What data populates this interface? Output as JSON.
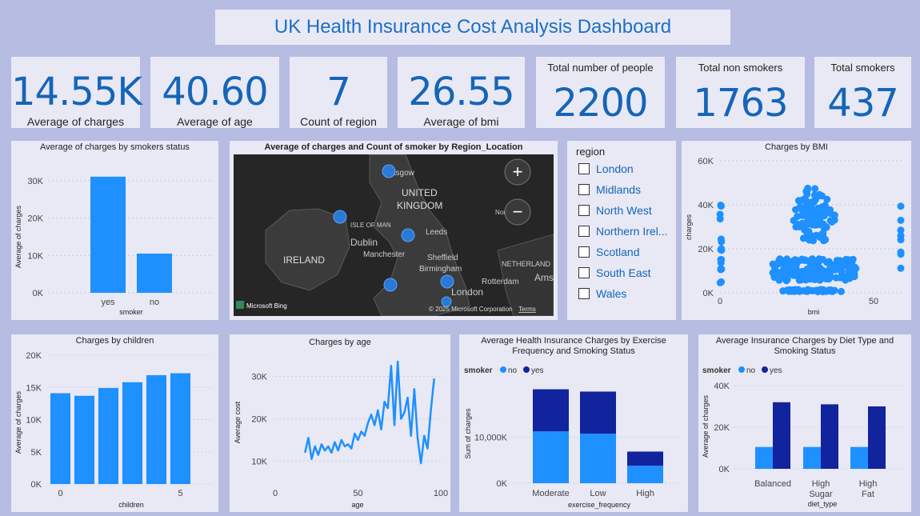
{
  "title": "UK Health Insurance Cost Analysis Dashboard",
  "kpis": [
    {
      "value": "14.55K",
      "label": "Average of charges"
    },
    {
      "value": "40.60",
      "label": "Average of age"
    },
    {
      "value": "7",
      "label": "Count of region"
    },
    {
      "value": "26.55",
      "label": "Average of bmi"
    },
    {
      "value": "2200",
      "label": "Total number of people"
    },
    {
      "value": "1763",
      "label": "Total non smokers"
    },
    {
      "value": "437",
      "label": "Total smokers"
    }
  ],
  "map": {
    "title": "Average of charges and Count of smoker by Region_Location",
    "labels": [
      "Glasgow",
      "UNITED",
      "KINGDOM",
      "ISLE OF MAN",
      "Dublin",
      "Leeds",
      "IRELAND",
      "Manchester",
      "Sheffield",
      "Birmingham",
      "NETHERLAND",
      "Rotterdam",
      "London",
      "Ams",
      "Nor"
    ],
    "attribution": "© 2025 Microsoft Corporation",
    "terms": "Terms",
    "bing": "Microsoft Bing",
    "zoom_in": "+",
    "zoom_out": "−"
  },
  "slicer": {
    "title": "region",
    "items": [
      "London",
      "Midlands",
      "North West",
      "Northern Irel...",
      "Scotland",
      "South East",
      "Wales"
    ]
  },
  "colors": {
    "light": "#1e90ff",
    "dark": "#12239e",
    "panel": "#e8e9f5",
    "bg": "#b7bce3"
  },
  "chart_data": [
    {
      "type": "bar",
      "title": "Average of charges by smokers status",
      "categories": [
        "yes",
        "no"
      ],
      "values": [
        31100,
        10500
      ],
      "xlabel": "smoker",
      "ylabel": "Average of charges",
      "ylim": [
        0,
        33000
      ],
      "yticks": [
        "30K",
        "20K",
        "10K",
        "0K"
      ]
    },
    {
      "type": "scatter",
      "title": "Charges by BMI",
      "xlabel": "bmi",
      "ylabel": "charges",
      "ylim": [
        0,
        60000
      ],
      "xlim": [
        0,
        70
      ],
      "yticks": [
        "60K",
        "40K",
        "20K",
        "0K"
      ],
      "xticks": [
        "0",
        "50"
      ]
    },
    {
      "type": "bar",
      "title": "Charges by children",
      "categories": [
        "0",
        "1",
        "2",
        "3",
        "4",
        "5"
      ],
      "values": [
        14100,
        13700,
        14900,
        15800,
        16900,
        17200
      ],
      "xlabel": "children",
      "ylabel": "Average of charges",
      "ylim": [
        0,
        20000
      ],
      "yticks": [
        "20K",
        "15K",
        "10K",
        "5K",
        "0K"
      ],
      "xticks": [
        "0",
        "5"
      ]
    },
    {
      "type": "line",
      "title": "Charges by age",
      "xlabel": "age",
      "ylabel": "Average cost",
      "xlim": [
        0,
        100
      ],
      "ylim": [
        5000,
        35000
      ],
      "yticks": [
        "30K",
        "20K",
        "10K"
      ],
      "xticks": [
        "0",
        "50",
        "100"
      ],
      "x": [
        18,
        20,
        22,
        24,
        26,
        28,
        30,
        32,
        34,
        36,
        38,
        40,
        42,
        44,
        46,
        48,
        50,
        52,
        54,
        56,
        58,
        60,
        62,
        64,
        66,
        68,
        70,
        72,
        74,
        76,
        78,
        80,
        82,
        84,
        86,
        88,
        90,
        92,
        94,
        96
      ],
      "y": [
        12000,
        15500,
        10500,
        13500,
        11500,
        14000,
        12500,
        13500,
        12000,
        14500,
        12500,
        15000,
        13500,
        14000,
        13000,
        16500,
        15000,
        17000,
        16000,
        19000,
        21000,
        18500,
        22000,
        17500,
        24000,
        22500,
        32500,
        18500,
        33500,
        20000,
        21500,
        25000,
        16000,
        27000,
        15500,
        9500,
        16000,
        13000,
        22000,
        29500
      ]
    },
    {
      "type": "bar",
      "title": "Average Health Insurance Charges by Exercise Frequency and Smoking Status",
      "legend_title": "smoker",
      "categories": [
        "Moderate",
        "Low",
        "High"
      ],
      "series": [
        {
          "name": "no",
          "values": [
            11300000,
            10800000,
            3800000
          ]
        },
        {
          "name": "yes",
          "values": [
            9200000,
            9200000,
            3100000
          ]
        }
      ],
      "xlabel": "exercise_frequency",
      "ylabel": "Sum of charges",
      "yticks": [
        "10,000K",
        "0K"
      ],
      "ylim": [
        0,
        22000000
      ]
    },
    {
      "type": "bar",
      "title": "Average Insurance Charges by Diet Type and Smoking Status",
      "legend_title": "smoker",
      "categories": [
        "Balanced",
        "High Sugar",
        "High Fat"
      ],
      "series": [
        {
          "name": "no",
          "values": [
            10500,
            10500,
            10500
          ]
        },
        {
          "name": "yes",
          "values": [
            32000,
            31000,
            30000
          ]
        }
      ],
      "xlabel": "diet_type",
      "ylabel": "Average of charges",
      "yticks": [
        "40K",
        "20K",
        "0K"
      ],
      "ylim": [
        0,
        42000
      ]
    }
  ]
}
